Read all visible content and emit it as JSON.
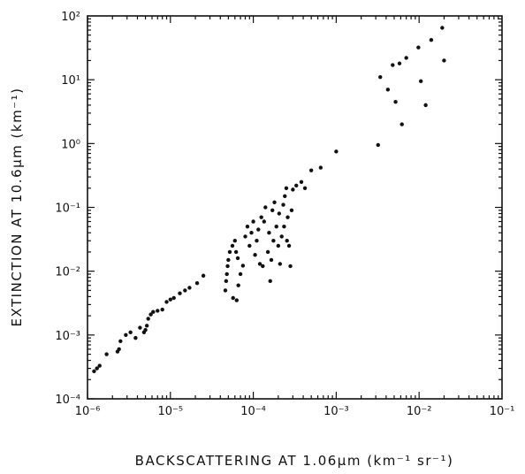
{
  "chart_data": {
    "type": "scatter",
    "xscale": "log",
    "yscale": "log",
    "xlim": [
      1e-06,
      0.1
    ],
    "ylim": [
      0.0001,
      100
    ],
    "xlabel": "BACKSCATTERING AT 1.06μm (km⁻¹ sr⁻¹)",
    "ylabel": "EXTINCTION AT 10.6μm (km⁻¹)",
    "x_ticks": [
      {
        "value": 1e-06,
        "label": "10⁻⁶"
      },
      {
        "value": 1e-05,
        "label": "10⁻⁵"
      },
      {
        "value": 0.0001,
        "label": "10⁻⁴"
      },
      {
        "value": 0.001,
        "label": "10⁻³"
      },
      {
        "value": 0.01,
        "label": "10⁻²"
      },
      {
        "value": 0.1,
        "label": "10⁻¹"
      }
    ],
    "y_ticks": [
      {
        "value": 0.0001,
        "label": "10⁻⁴"
      },
      {
        "value": 0.001,
        "label": "10⁻³"
      },
      {
        "value": 0.01,
        "label": "10⁻²"
      },
      {
        "value": 0.1,
        "label": "10⁻¹"
      },
      {
        "value": 1,
        "label": "10⁰"
      },
      {
        "value": 10,
        "label": "10¹"
      },
      {
        "value": 100,
        "label": "10²"
      }
    ],
    "grid": false,
    "points": [
      [
        1.2e-06,
        0.00027
      ],
      [
        1.3e-06,
        0.0003
      ],
      [
        1.4e-06,
        0.00033
      ],
      [
        1.7e-06,
        0.0005
      ],
      [
        2.3e-06,
        0.00055
      ],
      [
        2.4e-06,
        0.0006
      ],
      [
        2.5e-06,
        0.0008
      ],
      [
        2.9e-06,
        0.001
      ],
      [
        3.3e-06,
        0.0011
      ],
      [
        3.8e-06,
        0.0009
      ],
      [
        4.3e-06,
        0.0013
      ],
      [
        4.8e-06,
        0.0011
      ],
      [
        5e-06,
        0.0012
      ],
      [
        5.2e-06,
        0.0014
      ],
      [
        5.4e-06,
        0.0018
      ],
      [
        5.8e-06,
        0.0021
      ],
      [
        6.2e-06,
        0.0023
      ],
      [
        7e-06,
        0.0024
      ],
      [
        8e-06,
        0.0025
      ],
      [
        9e-06,
        0.0033
      ],
      [
        1e-05,
        0.0036
      ],
      [
        1.1e-05,
        0.0038
      ],
      [
        1.3e-05,
        0.0045
      ],
      [
        1.5e-05,
        0.005
      ],
      [
        1.7e-05,
        0.0055
      ],
      [
        2.1e-05,
        0.0065
      ],
      [
        2.5e-05,
        0.0085
      ],
      [
        4.6e-05,
        0.005
      ],
      [
        4.7e-05,
        0.007
      ],
      [
        4.8e-05,
        0.009
      ],
      [
        4.9e-05,
        0.012
      ],
      [
        5e-05,
        0.015
      ],
      [
        5.2e-05,
        0.02
      ],
      [
        5.6e-05,
        0.025
      ],
      [
        6e-05,
        0.03
      ],
      [
        6.2e-05,
        0.02
      ],
      [
        6.5e-05,
        0.016
      ],
      [
        5.7e-05,
        0.0038
      ],
      [
        6.3e-05,
        0.0035
      ],
      [
        6.6e-05,
        0.006
      ],
      [
        7e-05,
        0.009
      ],
      [
        7.5e-05,
        0.0122
      ],
      [
        8e-05,
        0.035
      ],
      [
        8.5e-05,
        0.05
      ],
      [
        9e-05,
        0.025
      ],
      [
        9.5e-05,
        0.04
      ],
      [
        0.0001,
        0.06
      ],
      [
        0.000105,
        0.018
      ],
      [
        0.00011,
        0.03
      ],
      [
        0.000115,
        0.045
      ],
      [
        0.00012,
        0.013
      ],
      [
        0.000125,
        0.07
      ],
      [
        0.00013,
        0.012
      ],
      [
        0.000135,
        0.06
      ],
      [
        0.00014,
        0.1
      ],
      [
        0.00015,
        0.02
      ],
      [
        0.000155,
        0.04
      ],
      [
        0.00016,
        0.007
      ],
      [
        0.000165,
        0.015
      ],
      [
        0.00017,
        0.09
      ],
      [
        0.000175,
        0.03
      ],
      [
        0.00018,
        0.12
      ],
      [
        0.00019,
        0.05
      ],
      [
        0.0002,
        0.025
      ],
      [
        0.000205,
        0.08
      ],
      [
        0.00021,
        0.013
      ],
      [
        0.00022,
        0.035
      ],
      [
        0.00023,
        0.11
      ],
      [
        0.000235,
        0.05
      ],
      [
        0.00024,
        0.15
      ],
      [
        0.00025,
        0.2
      ],
      [
        0.000255,
        0.03
      ],
      [
        0.00026,
        0.07
      ],
      [
        0.00027,
        0.025
      ],
      [
        0.00028,
        0.012
      ],
      [
        0.00029,
        0.09
      ],
      [
        0.0003,
        0.19
      ],
      [
        0.00033,
        0.22
      ],
      [
        0.00038,
        0.25
      ],
      [
        0.00042,
        0.2
      ],
      [
        0.0005,
        0.38
      ],
      [
        0.00065,
        0.42
      ],
      [
        0.001,
        0.75
      ],
      [
        0.0032,
        0.95
      ],
      [
        0.0034,
        11
      ],
      [
        0.0042,
        7
      ],
      [
        0.0048,
        17
      ],
      [
        0.0052,
        4.5
      ],
      [
        0.0058,
        18
      ],
      [
        0.0062,
        2
      ],
      [
        0.007,
        22
      ],
      [
        0.0098,
        32
      ],
      [
        0.0105,
        9.5
      ],
      [
        0.012,
        4
      ],
      [
        0.014,
        42
      ],
      [
        0.019,
        65
      ],
      [
        0.02,
        20
      ]
    ]
  }
}
